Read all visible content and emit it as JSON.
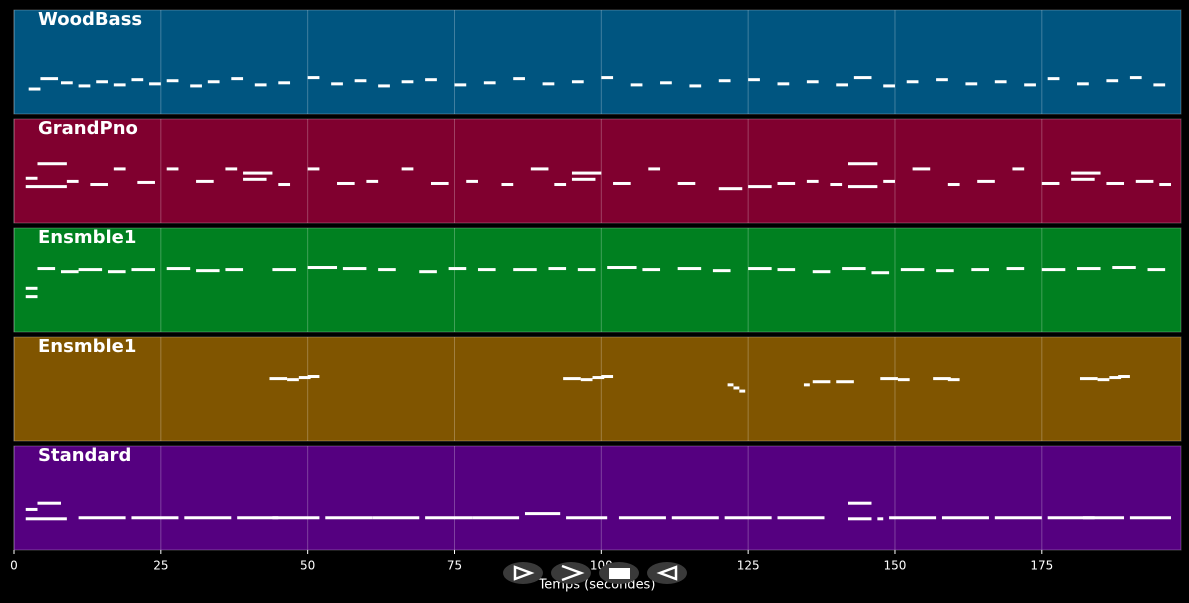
{
  "chart_data": {
    "type": "piano-roll",
    "xlabel": "Temps (secondes)",
    "xlim": [
      0,
      198.7
    ],
    "xticks": [
      0,
      25,
      50,
      75,
      100,
      125,
      150,
      175
    ],
    "grid": true,
    "tracks": [
      {
        "name": "WoodBass",
        "color": "#005580",
        "ylim": [
          0,
          100
        ],
        "notes": [
          [
            2.5,
            2,
            24
          ],
          [
            4.5,
            3,
            34
          ],
          [
            8,
            2,
            30
          ],
          [
            11,
            2,
            27
          ],
          [
            14,
            2,
            31
          ],
          [
            17,
            2,
            28
          ],
          [
            20,
            2,
            33
          ],
          [
            23,
            2,
            29
          ],
          [
            26,
            2,
            32
          ],
          [
            30,
            2,
            27
          ],
          [
            33,
            2,
            31
          ],
          [
            37,
            2,
            34
          ],
          [
            41,
            2,
            28
          ],
          [
            45,
            2,
            30
          ],
          [
            50,
            2,
            35
          ],
          [
            54,
            2,
            29
          ],
          [
            58,
            2,
            32
          ],
          [
            62,
            2,
            27
          ],
          [
            66,
            2,
            31
          ],
          [
            70,
            2,
            33
          ],
          [
            75,
            2,
            28
          ],
          [
            80,
            2,
            30
          ],
          [
            85,
            2,
            34
          ],
          [
            90,
            2,
            29
          ],
          [
            95,
            2,
            31
          ],
          [
            100,
            2,
            35
          ],
          [
            105,
            2,
            28
          ],
          [
            110,
            2,
            30
          ],
          [
            115,
            2,
            27
          ],
          [
            120,
            2,
            32
          ],
          [
            125,
            2,
            33
          ],
          [
            130,
            2,
            29
          ],
          [
            135,
            2,
            31
          ],
          [
            140,
            2,
            28
          ],
          [
            143,
            3,
            35
          ],
          [
            148,
            2,
            27
          ],
          [
            152,
            2,
            31
          ],
          [
            157,
            2,
            33
          ],
          [
            162,
            2,
            29
          ],
          [
            167,
            2,
            31
          ],
          [
            172,
            2,
            28
          ],
          [
            176,
            2,
            34
          ],
          [
            181,
            2,
            29
          ],
          [
            186,
            2,
            32
          ],
          [
            190,
            2,
            35
          ],
          [
            194,
            2,
            28
          ]
        ]
      },
      {
        "name": "GrandPno",
        "color": "#80002f",
        "ylim": [
          0,
          100
        ],
        "notes": [
          [
            2,
            2,
            43
          ],
          [
            2,
            2,
            35
          ],
          [
            4,
            5,
            57
          ],
          [
            4,
            5,
            35
          ],
          [
            9,
            2,
            40
          ],
          [
            13,
            3,
            37
          ],
          [
            17,
            2,
            52
          ],
          [
            21,
            3,
            39
          ],
          [
            26,
            2,
            52
          ],
          [
            31,
            3,
            40
          ],
          [
            36,
            2,
            52
          ],
          [
            39,
            5,
            48
          ],
          [
            39,
            4,
            42
          ],
          [
            45,
            2,
            37
          ],
          [
            50,
            2,
            52
          ],
          [
            55,
            3,
            38
          ],
          [
            60,
            2,
            40
          ],
          [
            66,
            2,
            52
          ],
          [
            71,
            3,
            38
          ],
          [
            77,
            2,
            40
          ],
          [
            83,
            2,
            37
          ],
          [
            88,
            3,
            52
          ],
          [
            92,
            2,
            37
          ],
          [
            95,
            5,
            48
          ],
          [
            95,
            4,
            42
          ],
          [
            102,
            3,
            38
          ],
          [
            108,
            2,
            52
          ],
          [
            113,
            3,
            38
          ],
          [
            120,
            4,
            33
          ],
          [
            125,
            4,
            35
          ],
          [
            130,
            3,
            38
          ],
          [
            135,
            2,
            40
          ],
          [
            139,
            2,
            37
          ],
          [
            142,
            5,
            57
          ],
          [
            142,
            5,
            35
          ],
          [
            148,
            2,
            40
          ],
          [
            153,
            3,
            52
          ],
          [
            159,
            2,
            37
          ],
          [
            164,
            3,
            40
          ],
          [
            170,
            2,
            52
          ],
          [
            175,
            3,
            38
          ],
          [
            180,
            5,
            48
          ],
          [
            180,
            4,
            42
          ],
          [
            186,
            3,
            38
          ],
          [
            191,
            3,
            40
          ],
          [
            195,
            2,
            37
          ]
        ]
      },
      {
        "name": "Ensmble1",
        "color": "#008020",
        "ylim": [
          0,
          100
        ],
        "notes": [
          [
            2,
            2,
            42
          ],
          [
            2,
            2,
            34
          ],
          [
            4,
            3,
            61
          ],
          [
            8,
            3,
            58
          ],
          [
            11,
            4,
            60
          ],
          [
            16,
            3,
            58
          ],
          [
            20,
            4,
            60
          ],
          [
            26,
            4,
            61
          ],
          [
            31,
            4,
            59
          ],
          [
            36,
            3,
            60
          ],
          [
            44,
            4,
            60
          ],
          [
            50,
            5,
            62
          ],
          [
            56,
            4,
            61
          ],
          [
            62,
            3,
            60
          ],
          [
            69,
            3,
            58
          ],
          [
            74,
            3,
            61
          ],
          [
            79,
            3,
            60
          ],
          [
            85,
            4,
            60
          ],
          [
            91,
            3,
            61
          ],
          [
            96,
            3,
            60
          ],
          [
            101,
            5,
            62
          ],
          [
            107,
            3,
            60
          ],
          [
            113,
            4,
            61
          ],
          [
            119,
            3,
            59
          ],
          [
            125,
            4,
            61
          ],
          [
            130,
            3,
            60
          ],
          [
            136,
            3,
            58
          ],
          [
            141,
            4,
            61
          ],
          [
            146,
            3,
            57
          ],
          [
            151,
            4,
            60
          ],
          [
            157,
            3,
            59
          ],
          [
            163,
            3,
            60
          ],
          [
            169,
            3,
            61
          ],
          [
            175,
            4,
            60
          ],
          [
            181,
            4,
            61
          ],
          [
            187,
            4,
            62
          ],
          [
            193,
            3,
            60
          ]
        ]
      },
      {
        "name": "Ensmble1",
        "color": "#805500",
        "ylim": [
          0,
          100
        ],
        "notes": [
          [
            43.5,
            3,
            60
          ],
          [
            46.5,
            2,
            59
          ],
          [
            48.5,
            2,
            61
          ],
          [
            50,
            2,
            62
          ],
          [
            93.5,
            3,
            60
          ],
          [
            96.5,
            2,
            59
          ],
          [
            98.5,
            2,
            61
          ],
          [
            100,
            2,
            62
          ],
          [
            121.5,
            1,
            54
          ],
          [
            122.5,
            1,
            51
          ],
          [
            123.5,
            1,
            48
          ],
          [
            134.5,
            1,
            54
          ],
          [
            136,
            3,
            57
          ],
          [
            140,
            3,
            57
          ],
          [
            147.5,
            3,
            60
          ],
          [
            150.5,
            2,
            59
          ],
          [
            156.5,
            3,
            60
          ],
          [
            159,
            2,
            59
          ],
          [
            181.5,
            3,
            60
          ],
          [
            184.5,
            2,
            59
          ],
          [
            186.5,
            2,
            61
          ],
          [
            188,
            2,
            62
          ]
        ]
      },
      {
        "name": "Standard",
        "color": "#550080",
        "ylim": [
          0,
          100
        ],
        "notes": [
          [
            2,
            2,
            39
          ],
          [
            2,
            2,
            30
          ],
          [
            4,
            4,
            45
          ],
          [
            4,
            4,
            30
          ],
          [
            8,
            1,
            30
          ],
          [
            11,
            8,
            31
          ],
          [
            20,
            8,
            31
          ],
          [
            29,
            8,
            31
          ],
          [
            38,
            7,
            31
          ],
          [
            44,
            8,
            31
          ],
          [
            53,
            8,
            31
          ],
          [
            61,
            8,
            31
          ],
          [
            70,
            8,
            31
          ],
          [
            78,
            8,
            31
          ],
          [
            87,
            6,
            35
          ],
          [
            94,
            7,
            31
          ],
          [
            103,
            8,
            31
          ],
          [
            112,
            8,
            31
          ],
          [
            121,
            8,
            31
          ],
          [
            130,
            8,
            31
          ],
          [
            142,
            4,
            45
          ],
          [
            142,
            4,
            30
          ],
          [
            147,
            1,
            30
          ],
          [
            149,
            8,
            31
          ],
          [
            158,
            8,
            31
          ],
          [
            167,
            8,
            31
          ],
          [
            176,
            8,
            31
          ],
          [
            182,
            7,
            31
          ],
          [
            190,
            7,
            31
          ]
        ]
      }
    ]
  }
}
